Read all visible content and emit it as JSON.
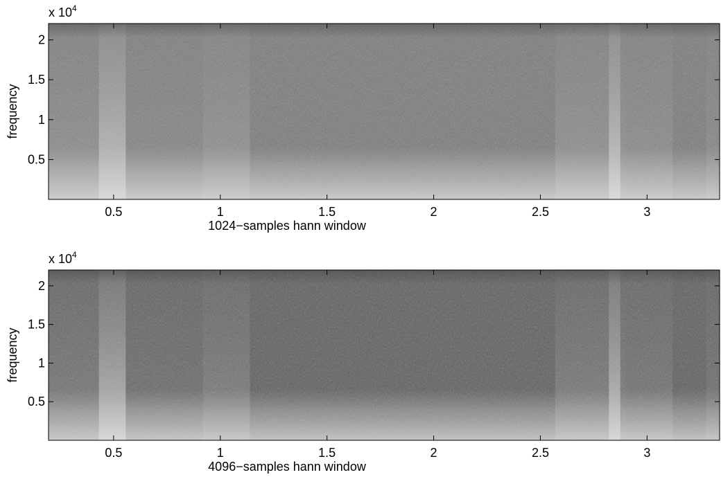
{
  "chart_data": [
    {
      "type": "spectrogram",
      "xlabel": "1024−samples hann window",
      "ylabel": "frequency",
      "y_exponent_base": "x 10",
      "y_exponent": "4",
      "xlim": [
        0.195,
        3.34
      ],
      "xticks": [
        0.5,
        1,
        1.5,
        2,
        2.5,
        3
      ],
      "ylim": [
        0,
        2.205
      ],
      "yticks": [
        0.5,
        1,
        1.5,
        2
      ],
      "color": "#7b7b7b"
    },
    {
      "type": "spectrogram",
      "xlabel": "4096−samples hann window",
      "ylabel": "frequency",
      "y_exponent_base": "x 10",
      "y_exponent": "4",
      "xlim": [
        0.195,
        3.34
      ],
      "xticks": [
        0.5,
        1,
        1.5,
        2,
        2.5,
        3
      ],
      "ylim": [
        0,
        2.205
      ],
      "yticks": [
        0.5,
        1,
        1.5,
        2
      ],
      "color": "#5f5f5f"
    }
  ]
}
